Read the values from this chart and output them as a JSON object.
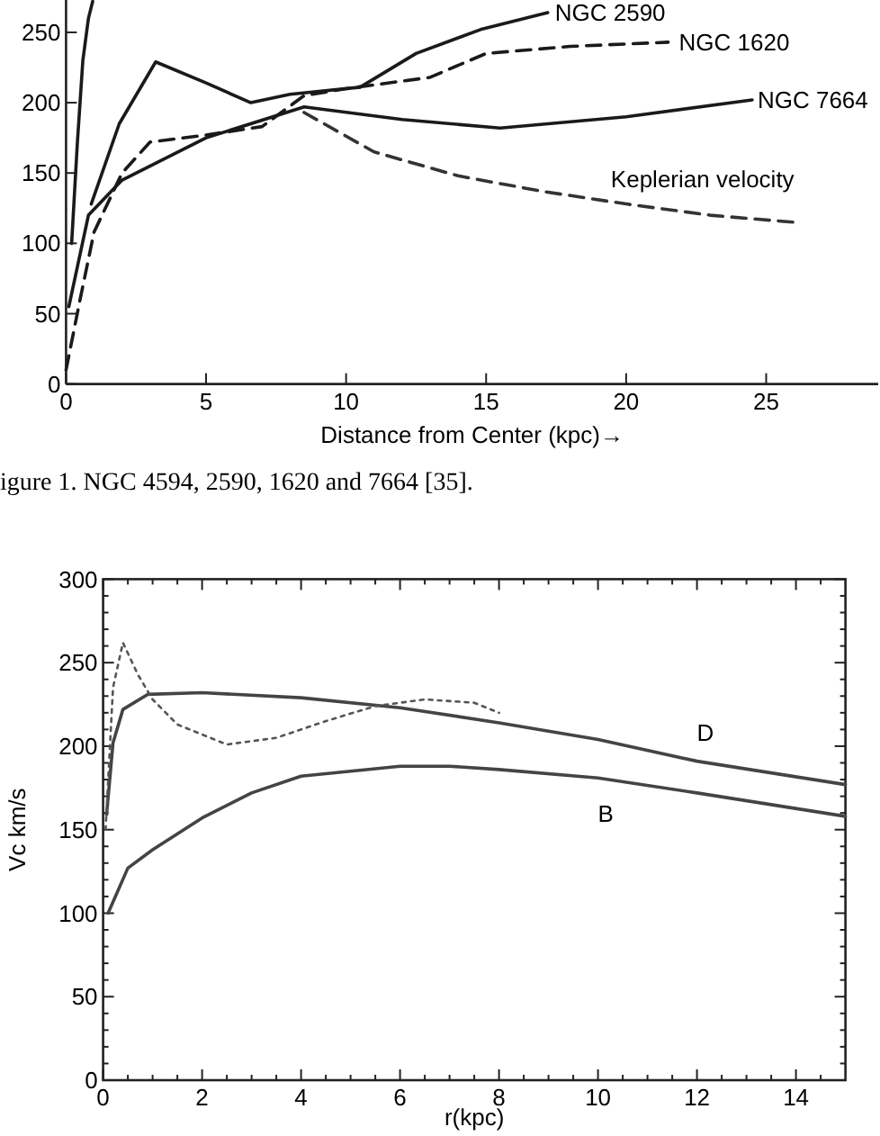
{
  "chart_data": [
    {
      "type": "line",
      "xlabel": "Distance from Center (kpc)→",
      "xlim": [
        0,
        29
      ],
      "ylim": [
        0,
        273
      ],
      "xticks": [
        0,
        5,
        10,
        15,
        20,
        25
      ],
      "yticks": [
        0,
        50,
        100,
        150,
        200,
        250
      ],
      "series": [
        {
          "color": "#1a1a1a",
          "line_style": "solid",
          "x": [
            0.2,
            0.4,
            0.6,
            0.8,
            0.95
          ],
          "values": [
            100,
            170,
            230,
            260,
            272
          ]
        },
        {
          "name": "NGC 2590",
          "color": "#1a1a1a",
          "line_style": "solid",
          "x": [
            0.9,
            1.9,
            3.2,
            5,
            6.6,
            8,
            10.5,
            12.5,
            14.8,
            17.2
          ],
          "values": [
            128,
            185,
            229,
            214,
            200,
            206,
            211,
            235,
            252,
            264
          ]
        },
        {
          "name": "NGC 1620",
          "color": "#1a1a1a",
          "line_style": "dashed",
          "x": [
            0,
            0.5,
            1,
            2,
            3,
            5,
            7,
            8.5,
            10,
            13,
            15,
            18,
            21.5
          ],
          "values": [
            10,
            60,
            108,
            150,
            172,
            177,
            183,
            205,
            210,
            218,
            235,
            240,
            243
          ]
        },
        {
          "name": "NGC 7664",
          "color": "#1a1a1a",
          "line_style": "solid",
          "x": [
            0.1,
            0.8,
            2,
            5,
            8.5,
            12,
            15.5,
            20,
            24.5
          ],
          "values": [
            55,
            120,
            145,
            175,
            197,
            188,
            182,
            190,
            202
          ]
        },
        {
          "name": "Keplerian velocity",
          "color": "#333333",
          "line_style": "dashed",
          "x": [
            8.5,
            11,
            14,
            17,
            20,
            23,
            26
          ],
          "values": [
            193,
            165,
            148,
            137,
            128,
            120,
            115
          ]
        }
      ],
      "annotations": [
        "igure 1. NGC 4594, 2590, 1620 and 7664 [35]."
      ]
    },
    {
      "type": "line",
      "xlabel": "r(kpc)",
      "ylabel": "Vc km/s",
      "xlim": [
        0,
        15
      ],
      "ylim": [
        0,
        300
      ],
      "xticks": [
        0,
        {
          "value": 0.5,
          "label": null
        },
        {
          "value": 1,
          "label": null
        },
        {
          "value": 1.5,
          "label": null
        },
        2,
        {
          "value": 2.5,
          "label": null
        },
        {
          "value": 3,
          "label": null
        },
        {
          "value": 3.5,
          "label": null
        },
        4,
        {
          "value": 4.5,
          "label": null
        },
        {
          "value": 5,
          "label": null
        },
        {
          "value": 5.5,
          "label": null
        },
        6,
        {
          "value": 6.5,
          "label": null
        },
        {
          "value": 7,
          "label": null
        },
        {
          "value": 7.5,
          "label": null
        },
        8,
        {
          "value": 8.5,
          "label": null
        },
        {
          "value": 9,
          "label": null
        },
        {
          "value": 9.5,
          "label": null
        },
        10,
        {
          "value": 10.5,
          "label": null
        },
        {
          "value": 11,
          "label": null
        },
        {
          "value": 11.5,
          "label": null
        },
        12,
        {
          "value": 12.5,
          "label": null
        },
        {
          "value": 13,
          "label": null
        },
        {
          "value": 13.5,
          "label": null
        },
        14,
        {
          "value": 14.5,
          "label": null
        }
      ],
      "yticks": [
        0,
        {
          "value": 10,
          "label": null
        },
        {
          "value": 20,
          "label": null
        },
        {
          "value": 30,
          "label": null
        },
        {
          "value": 40,
          "label": null
        },
        50,
        {
          "value": 60,
          "label": null
        },
        {
          "value": 70,
          "label": null
        },
        {
          "value": 80,
          "label": null
        },
        {
          "value": 90,
          "label": null
        },
        100,
        {
          "value": 110,
          "label": null
        },
        {
          "value": 120,
          "label": null
        },
        {
          "value": 130,
          "label": null
        },
        {
          "value": 140,
          "label": null
        },
        150,
        {
          "value": 160,
          "label": null
        },
        {
          "value": 170,
          "label": null
        },
        {
          "value": 180,
          "label": null
        },
        {
          "value": 190,
          "label": null
        },
        200,
        {
          "value": 210,
          "label": null
        },
        {
          "value": 220,
          "label": null
        },
        {
          "value": 230,
          "label": null
        },
        {
          "value": 240,
          "label": null
        },
        250,
        {
          "value": 260,
          "label": null
        },
        {
          "value": 270,
          "label": null
        },
        {
          "value": 280,
          "label": null
        },
        {
          "value": 290,
          "label": null
        },
        300
      ],
      "series": [
        {
          "name": "D",
          "color": "#444444",
          "line_style": "solid",
          "x": [
            0.07,
            0.2,
            0.4,
            0.9,
            2,
            4,
            6,
            8,
            10,
            12,
            15
          ],
          "values": [
            159,
            202,
            222,
            231,
            232,
            229,
            223,
            214,
            204,
            191,
            177
          ]
        },
        {
          "name": "B",
          "color": "#444444",
          "line_style": "solid",
          "x": [
            0.1,
            0.5,
            1,
            2,
            3,
            4,
            6,
            7,
            8,
            10,
            12,
            15
          ],
          "values": [
            100,
            127,
            138,
            157,
            172,
            182,
            188,
            188,
            186,
            181,
            172,
            158
          ]
        },
        {
          "color": "#555555",
          "line_style": "dotted",
          "x": [
            0.05,
            0.2,
            0.4,
            0.7,
            1,
            1.5,
            2.5,
            3.5,
            4.5,
            5.5,
            6.5,
            7.5,
            8
          ],
          "values": [
            150,
            235,
            262,
            243,
            228,
            213,
            201,
            205,
            215,
            224,
            228,
            226,
            220
          ]
        }
      ]
    }
  ]
}
